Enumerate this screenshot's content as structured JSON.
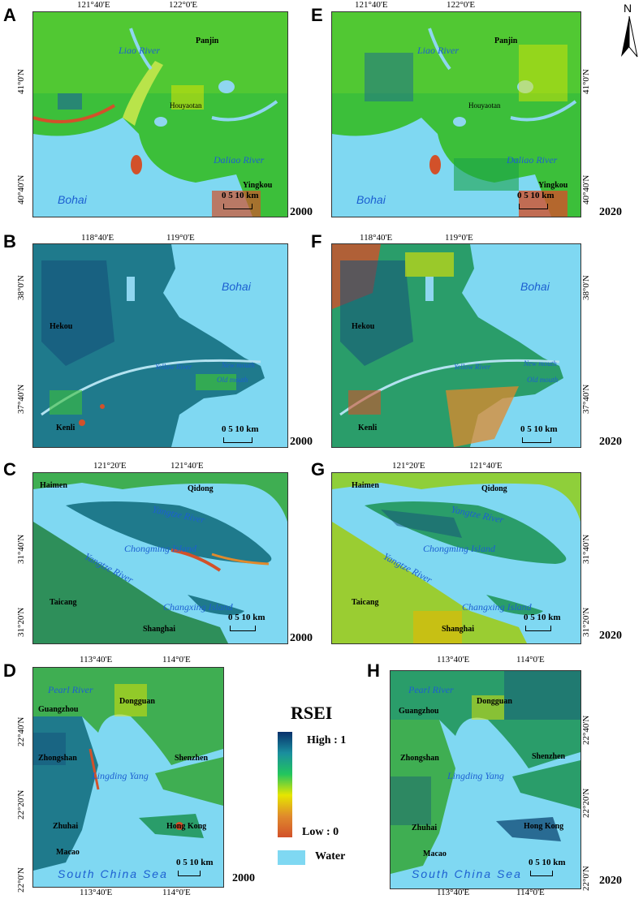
{
  "panels": {
    "A": {
      "label": "A",
      "year": "2000",
      "xticks": [
        "121°40'E",
        "122°0'E"
      ],
      "yticks": [
        "41°0'N",
        "40°40'N"
      ],
      "places": {
        "panjin": "Panjin",
        "houyaotan": "Houyaotan",
        "yingkou": "Yingkou"
      },
      "rivers": {
        "liao": "Liao River",
        "daliao": "Daliao River"
      },
      "sea": "Bohai",
      "scale": "0  5  10 km"
    },
    "E": {
      "label": "E",
      "year": "2020",
      "xticks": [
        "121°40'E",
        "122°0'E"
      ],
      "yticks": [
        "41°0'N",
        "40°40'N"
      ],
      "places": {
        "panjin": "Panjin",
        "houyaotan": "Houyaotan",
        "yingkou": "Yingkou"
      },
      "rivers": {
        "liao": "Liao River",
        "daliao": "Daliao River"
      },
      "sea": "Bohai",
      "scale": "0  5  10 km"
    },
    "B": {
      "label": "B",
      "year": "2000",
      "xticks": [
        "118°40'E",
        "119°0'E"
      ],
      "yticks": [
        "38°0'N",
        "37°40'N"
      ],
      "places": {
        "hekou": "Hekou",
        "kenli": "Kenli"
      },
      "rivers": {
        "yellow": "Yellow River",
        "newmouth": "New mouth",
        "oldmouth": "Old mouth"
      },
      "sea": "Bohai",
      "scale": "0  5  10 km"
    },
    "F": {
      "label": "F",
      "year": "2020",
      "xticks": [
        "118°40'E",
        "119°0'E"
      ],
      "yticks": [
        "38°0'N",
        "37°40'N"
      ],
      "places": {
        "hekou": "Hekou",
        "kenli": "Kenli"
      },
      "rivers": {
        "yellow": "Yellow River",
        "newmouth": "New mouth",
        "oldmouth": "Old mouth"
      },
      "sea": "Bohai",
      "scale": "0  5  10 km"
    },
    "C": {
      "label": "C",
      "year": "2000",
      "xticks": [
        "121°20'E",
        "121°40'E"
      ],
      "yticks": [
        "31°40'N",
        "31°20'N"
      ],
      "places": {
        "haimen": "Haimen",
        "qidong": "Qidong",
        "taicang": "Taicang",
        "shanghai": "Shanghai"
      },
      "rivers": {
        "yangtze1": "Yangtze River",
        "yangtze2": "Yangtze River",
        "chongming": "Chongming Island",
        "changxing": "Changxing Island"
      },
      "scale": "0  5 10 km"
    },
    "G": {
      "label": "G",
      "year": "2020",
      "xticks": [
        "121°20'E",
        "121°40'E"
      ],
      "yticks": [
        "31°40'N",
        "31°20'N"
      ],
      "places": {
        "haimen": "Haimen",
        "qidong": "Qidong",
        "taicang": "Taicang",
        "shanghai": "Shanghai"
      },
      "rivers": {
        "yangtze1": "Yangtze River",
        "yangtze2": "Yangtze River",
        "chongming": "Chongming Island",
        "changxing": "Changxing Island"
      },
      "scale": "0  5 10 km"
    },
    "D": {
      "label": "D",
      "year": "2000",
      "xticks": [
        "113°40'E",
        "114°0'E"
      ],
      "yticks": [
        "22°40'N",
        "22°20'N",
        "22°0'N"
      ],
      "places": {
        "guangzhou": "Guangzhou",
        "dongguan": "Dongguan",
        "zhongshan": "Zhongshan",
        "shenzhen": "Shenzhen",
        "zhuhai": "Zhuhai",
        "hongkong": "Hong Kong",
        "macao": "Macao"
      },
      "rivers": {
        "pearl": "Pearl River",
        "lingding": "Lingding Yang"
      },
      "sea": "South China Sea",
      "scale": "0  5 10 km"
    },
    "H": {
      "label": "H",
      "year": "2020",
      "xticks": [
        "113°40'E",
        "114°0'E"
      ],
      "yticks": [
        "22°40'N",
        "22°20'N",
        "22°0'N"
      ],
      "places": {
        "guangzhou": "Guangzhou",
        "dongguan": "Dongguan",
        "zhongshan": "Zhongshan",
        "shenzhen": "Shenzhen",
        "zhuhai": "Zhuhai",
        "hongkong": "Hong Kong",
        "macao": "Macao"
      },
      "rivers": {
        "pearl": "Pearl River",
        "lingding": "Lingding Yang"
      },
      "sea": "South China Sea",
      "scale": "0  5 10 km"
    }
  },
  "legend": {
    "title": "RSEI",
    "high": "High : 1",
    "low": "Low  : 0",
    "water": "Water"
  },
  "north": "N",
  "colors": {
    "water": "#7fd8f2",
    "high": "#08306b",
    "mid": "#22c55e",
    "yellow": "#e6e600",
    "low": "#d2512a"
  }
}
